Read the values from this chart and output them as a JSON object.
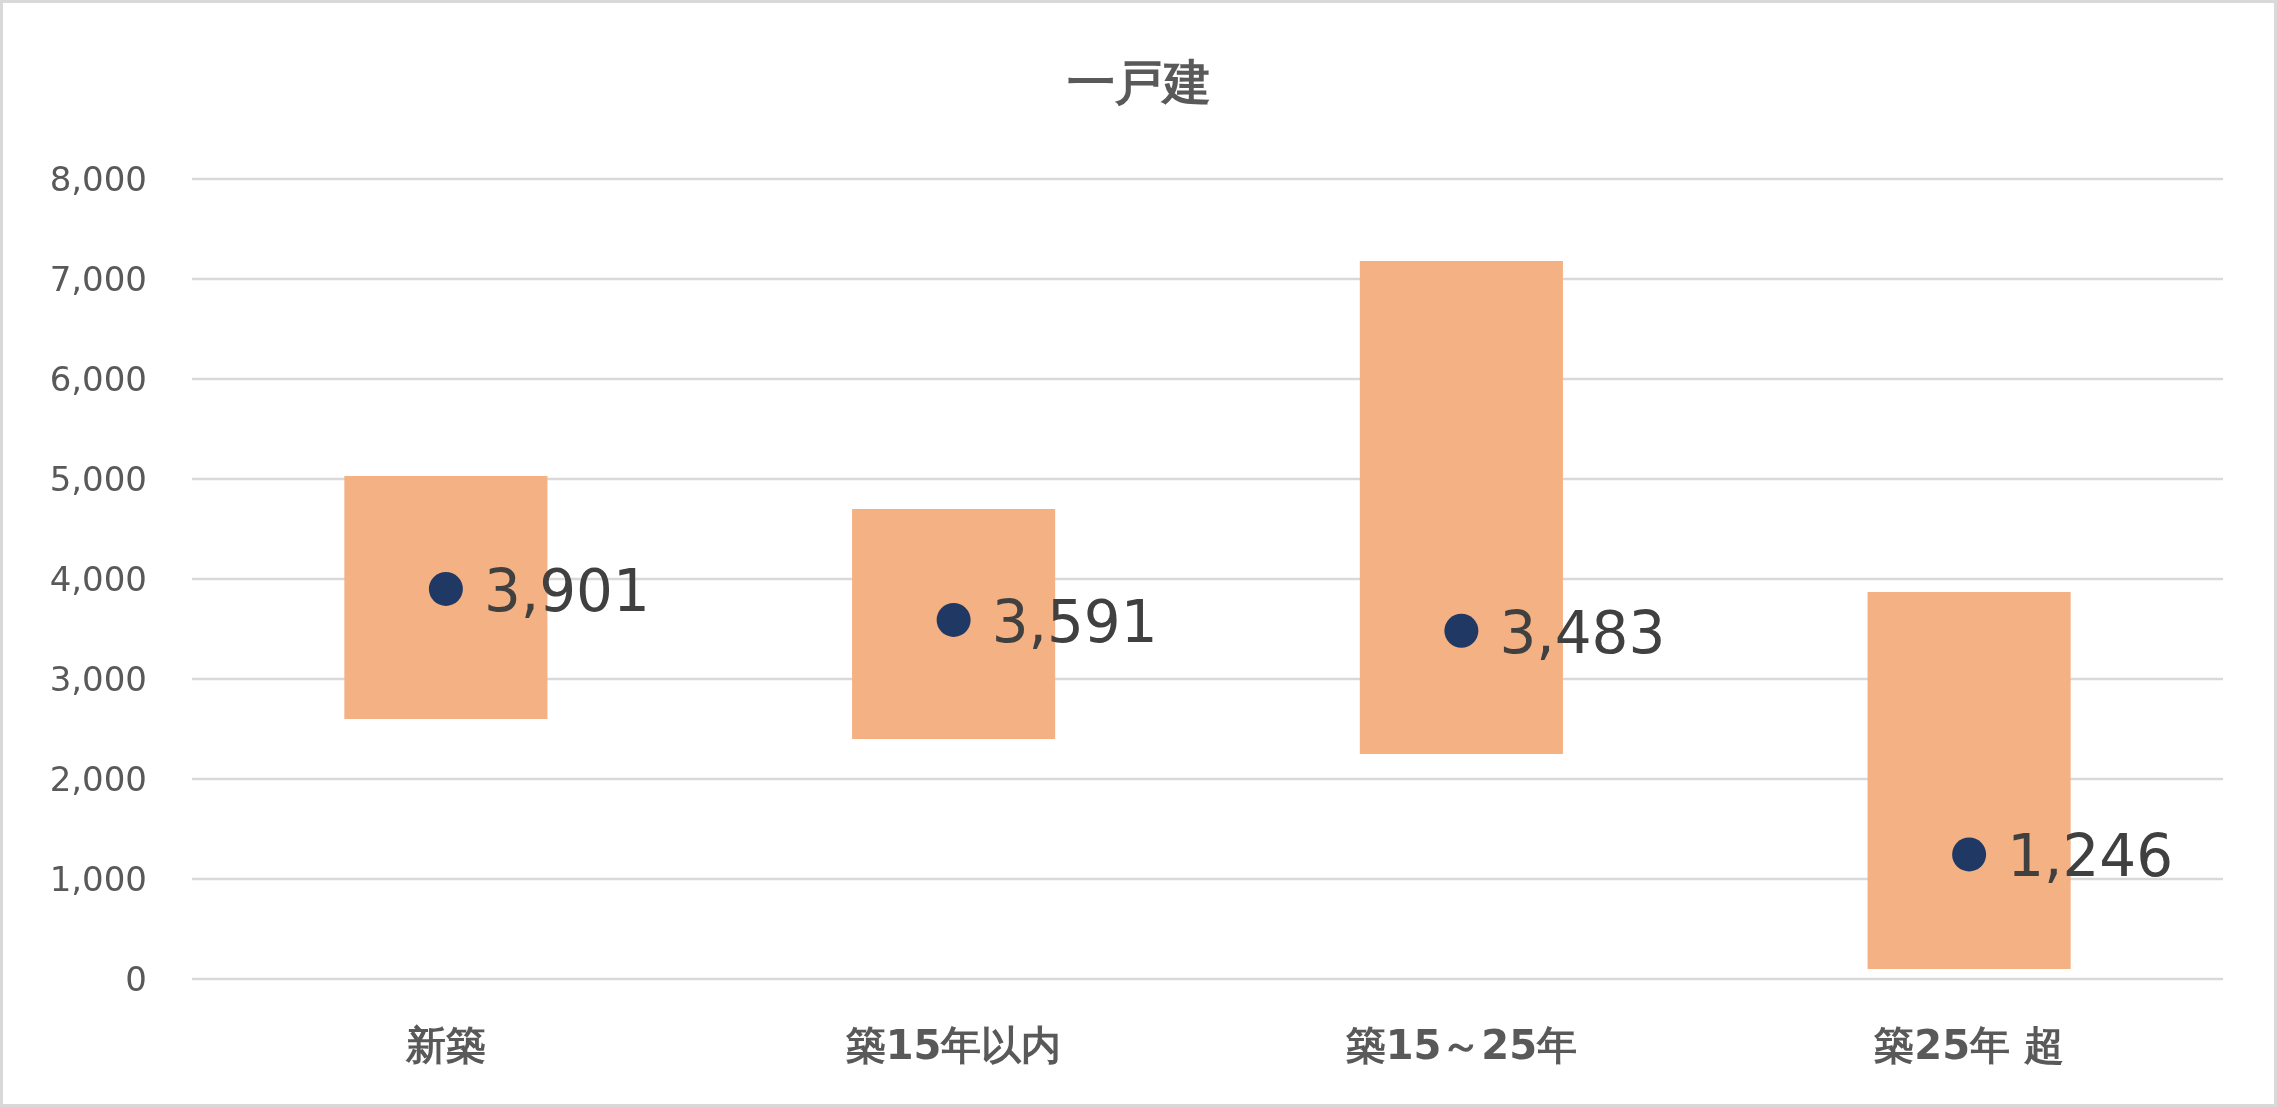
{
  "chart_data": {
    "type": "bar",
    "title": "一戸建",
    "categories": [
      "新築",
      "築15年以内",
      "築15～25年",
      "築25年 超"
    ],
    "series": [
      {
        "type": "bar",
        "color": "#f4b183",
        "base": [
          2600,
          2400,
          2250,
          100
        ],
        "values": [
          2430,
          2300,
          4930,
          3770
        ]
      },
      {
        "type": "scatter",
        "color": "#1f3864",
        "marker": "circle",
        "values": [
          3901,
          3591,
          3483,
          1246
        ],
        "value_labels": [
          "3,901",
          "3,591",
          "3,483",
          "1,246"
        ]
      }
    ],
    "ylim": [
      0,
      8000
    ],
    "yticks": [
      {
        "value": 0,
        "label": "0"
      },
      {
        "value": 1000,
        "label": "1,000"
      },
      {
        "value": 2000,
        "label": "2,000"
      },
      {
        "value": 3000,
        "label": "3,000"
      },
      {
        "value": 4000,
        "label": "4,000"
      },
      {
        "value": 5000,
        "label": "5,000"
      },
      {
        "value": 6000,
        "label": "6,000"
      },
      {
        "value": 7000,
        "label": "7,000"
      },
      {
        "value": 8000,
        "label": "8,000"
      }
    ],
    "grid": "y"
  }
}
